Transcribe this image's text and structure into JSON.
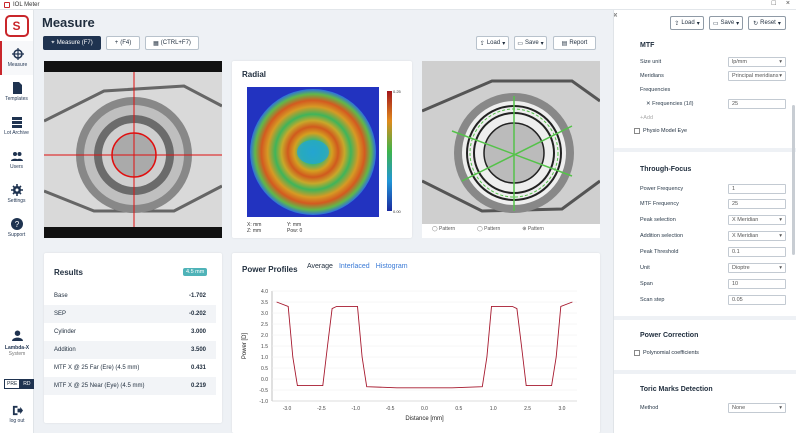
{
  "window": {
    "title": "IOL Meter",
    "buttons": [
      "□",
      "×"
    ]
  },
  "sidebar": {
    "items": [
      {
        "label": "Measure",
        "icon": "crosshair-icon",
        "active": true
      },
      {
        "label": "Templates",
        "icon": "document-icon"
      },
      {
        "label": "Lot Archive",
        "icon": "archive-icon"
      },
      {
        "label": "Users",
        "icon": "users-icon"
      },
      {
        "label": "Settings",
        "icon": "gear-icon"
      },
      {
        "label": "Support",
        "icon": "help-icon"
      }
    ],
    "user": {
      "name": "Lambda-X",
      "role": "System"
    },
    "mode": [
      "PRE",
      "RD"
    ],
    "logout": "log out"
  },
  "toolbar": {
    "title": "Measure",
    "measure": "Measure (F7)",
    "add": "(F4)",
    "third": "(CTRL+F7)",
    "load": "Load",
    "save": "Save",
    "report": "Report"
  },
  "radial": {
    "title": "Radial",
    "colorbar_max": "0.25",
    "colorbar_min": "0.00",
    "x": "X: mm",
    "y": "Y: mm",
    "z": "Z: mm",
    "pow": "Pow: 0"
  },
  "rightimg": {
    "controls": [
      "Pattern",
      "Pattern",
      "Pattern"
    ]
  },
  "results": {
    "title": "Results",
    "badge": "4.5 mm",
    "rows": [
      {
        "label": "Base",
        "value": "-1.702"
      },
      {
        "label": "SEP",
        "value": "-0.202"
      },
      {
        "label": "Cylinder",
        "value": "3.000"
      },
      {
        "label": "Addition",
        "value": "3.500"
      },
      {
        "label": "MTF X @ 25 Far (Ere) (4.5 mm)",
        "value": "0.431"
      },
      {
        "label": "MTF X @ 25 Near (Eye) (4.5 mm)",
        "value": "0.219"
      }
    ]
  },
  "profiles": {
    "title": "Power Profiles",
    "tabs": [
      "Average",
      "Interlaced",
      "Histogram"
    ]
  },
  "chart_data": {
    "type": "line",
    "xlabel": "Distance [mm]",
    "ylabel": "Power [D]",
    "xlim": [
      -3.3,
      3.3
    ],
    "ylim": [
      -1.0,
      4.0
    ],
    "xticks": [
      "-3.0",
      "-2.5",
      "-1.0",
      "-0.5",
      "0.0",
      "0.5",
      "1.0",
      "2.5",
      "3.0"
    ],
    "yticks": [
      "4.0",
      "3.5",
      "3.0",
      "2.5",
      "2.0",
      "1.5",
      "1.0",
      "0.5",
      "0.0",
      "-0.5",
      "-1.0"
    ],
    "series": [
      {
        "color": "#a6192e",
        "x": [
          -3.2,
          -2.95,
          -2.85,
          -2.75,
          -2.2,
          -2.1,
          -2.0,
          -1.9,
          -1.45,
          -1.35,
          -1.25,
          -0.6,
          0.0,
          0.6,
          1.25,
          1.35,
          1.45,
          1.9,
          2.0,
          2.1,
          2.2,
          2.75,
          2.85,
          2.95,
          3.2
        ],
        "y": [
          3.5,
          3.3,
          1.0,
          -0.3,
          -0.3,
          1.5,
          3.2,
          3.3,
          3.3,
          1.0,
          -0.35,
          -0.4,
          -0.4,
          -0.4,
          -0.35,
          1.0,
          3.3,
          3.3,
          3.2,
          1.5,
          -0.3,
          -0.3,
          1.0,
          3.3,
          3.5
        ]
      }
    ]
  },
  "rightpanel": {
    "buttons": [
      "Load",
      "Save",
      "Reset"
    ],
    "mtf": {
      "title": "MTF",
      "fields": [
        {
          "label": "Size unit",
          "value": "lp/mm"
        },
        {
          "label": "Meridians",
          "value": "Principal meridians"
        }
      ],
      "frequencies_label": "Frequencies",
      "freq_field": "Frequencies (1/l)",
      "freq_value": "25",
      "add": "Add",
      "physio": "Physio Model Eye"
    },
    "through": {
      "title": "Through-Focus",
      "fields": [
        {
          "label": "Power Frequency",
          "value": "1"
        },
        {
          "label": "MTF Frequency",
          "value": "25"
        },
        {
          "label": "Peak selection",
          "value": "X Meridian"
        },
        {
          "label": "Addition selection",
          "value": "X Meridian"
        },
        {
          "label": "Peak Threshold",
          "value": "0.1"
        },
        {
          "label": "Unit",
          "value": "Dioptre"
        },
        {
          "label": "Span",
          "value": "10"
        },
        {
          "label": "Scan step",
          "value": "0.05"
        }
      ]
    },
    "power": {
      "title": "Power Correction",
      "check": "Polynomial coefficients"
    },
    "toric": {
      "title": "Toric Marks Detection",
      "method_label": "Method",
      "method_value": "None"
    }
  }
}
